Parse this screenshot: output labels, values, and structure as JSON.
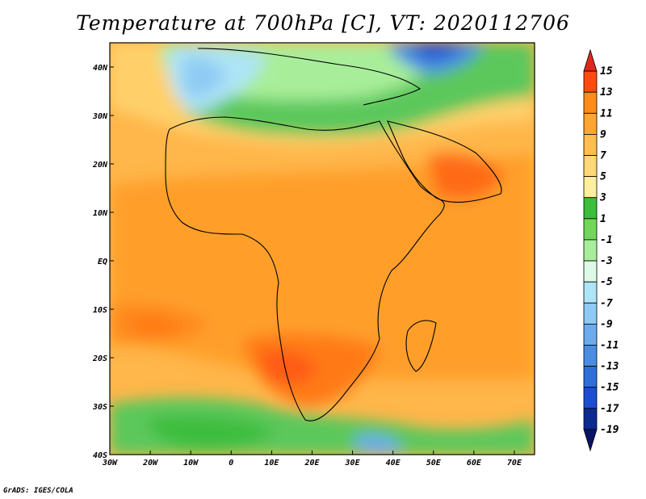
{
  "title": "Temperature at 700hPa [C], VT: 2020112706",
  "footer": "GrADS: IGES/COLA",
  "map": {
    "region": "Africa",
    "projection": "lat-lon",
    "lon_range": [
      -30,
      75
    ],
    "lat_range": [
      -40,
      45
    ],
    "lon_ticks": [
      {
        "value": -30,
        "label": "30W"
      },
      {
        "value": -20,
        "label": "20W"
      },
      {
        "value": -10,
        "label": "10W"
      },
      {
        "value": 0,
        "label": "0"
      },
      {
        "value": 10,
        "label": "10E"
      },
      {
        "value": 20,
        "label": "20E"
      },
      {
        "value": 30,
        "label": "30E"
      },
      {
        "value": 40,
        "label": "40E"
      },
      {
        "value": 50,
        "label": "50E"
      },
      {
        "value": 60,
        "label": "60E"
      },
      {
        "value": 70,
        "label": "70E"
      }
    ],
    "lat_ticks": [
      {
        "value": 40,
        "label": "40N"
      },
      {
        "value": 30,
        "label": "30N"
      },
      {
        "value": 20,
        "label": "20N"
      },
      {
        "value": 10,
        "label": "10N"
      },
      {
        "value": 0,
        "label": "EQ"
      },
      {
        "value": -10,
        "label": "10S"
      },
      {
        "value": -20,
        "label": "20S"
      },
      {
        "value": -30,
        "label": "30S"
      },
      {
        "value": -40,
        "label": "40S"
      }
    ]
  },
  "colorbar": {
    "labels": [
      "15",
      "13",
      "11",
      "9",
      "7",
      "5",
      "3",
      "1",
      "-1",
      "-3",
      "-5",
      "-7",
      "-9",
      "-11",
      "-13",
      "-15",
      "-17",
      "-19"
    ],
    "colors": [
      "#e0281a",
      "#ff4a12",
      "#ff8c1a",
      "#ffa533",
      "#ffbe4d",
      "#ffd878",
      "#ffee9e",
      "#3cbd3c",
      "#73d65a",
      "#a8ee9a",
      "#def9e8",
      "#aee4f7",
      "#8ecaf4",
      "#6cabec",
      "#4a8ee3",
      "#2d6fd9",
      "#1b4ed0",
      "#0c2a90",
      "#0a1466"
    ]
  }
}
